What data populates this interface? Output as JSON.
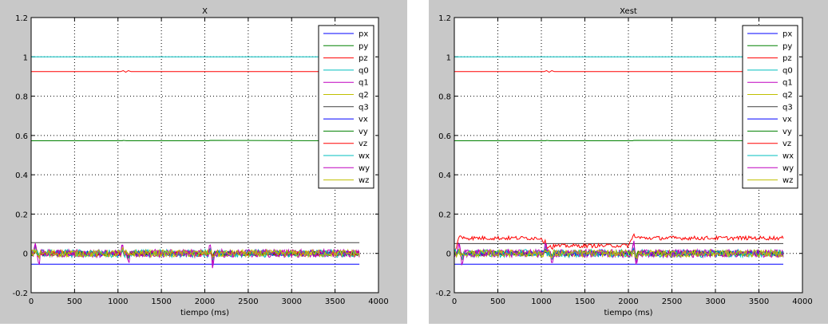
{
  "figure": {
    "background": "#c8c8c8",
    "axes_background": "#ffffff"
  },
  "chart_data": [
    {
      "type": "line",
      "title": "X",
      "xlabel": "tiempo (ms)",
      "ylabel": "",
      "xlim": [
        0,
        4000
      ],
      "ylim": [
        -0.2,
        1.2
      ],
      "xticks": [
        "0",
        "500",
        "1000",
        "1500",
        "2000",
        "2500",
        "3000",
        "3500",
        "4000"
      ],
      "yticks": [
        "-0.2",
        "0",
        "0.2",
        "0.4",
        "0.6",
        "0.8",
        "1",
        "1.2"
      ],
      "grid": true,
      "legend_position": "top-right",
      "series": [
        {
          "name": "px",
          "color": "#0000ff",
          "x": [
            0,
            3780
          ],
          "y": [
            -0.055,
            -0.055
          ]
        },
        {
          "name": "py",
          "color": "#008000",
          "x": [
            0,
            1050,
            1060,
            1100,
            2050,
            2060,
            3780
          ],
          "y": [
            0.573,
            0.573,
            0.575,
            0.573,
            0.573,
            0.575,
            0.573
          ]
        },
        {
          "name": "pz",
          "color": "#ff0000",
          "x": [
            0,
            1030,
            1060,
            1090,
            1120,
            1150,
            3780
          ],
          "y": [
            0.925,
            0.925,
            0.93,
            0.922,
            0.93,
            0.925,
            0.925
          ]
        },
        {
          "name": "q0",
          "color": "#00bfbf",
          "x": [
            0,
            3780
          ],
          "y": [
            1.0,
            1.0
          ]
        },
        {
          "name": "q1",
          "color": "#bf00bf",
          "x": [
            0,
            3780
          ],
          "y": [
            0,
            0
          ]
        },
        {
          "name": "q2",
          "color": "#bfbf00",
          "x": [
            0,
            3780
          ],
          "y": [
            0,
            0
          ]
        },
        {
          "name": "q3",
          "color": "#404040",
          "x": [
            0,
            3780
          ],
          "y": [
            0.055,
            0.055
          ]
        },
        {
          "name": "vx",
          "color": "#0000ff",
          "x": [
            0,
            3780
          ],
          "y": [
            0,
            0
          ]
        },
        {
          "name": "vy",
          "color": "#008000",
          "x": [
            0,
            3780
          ],
          "y": [
            0,
            0
          ]
        },
        {
          "name": "vz",
          "color": "#ff0000",
          "x": [
            0,
            3780
          ],
          "y": [
            0,
            0
          ]
        },
        {
          "name": "wx",
          "color": "#00bfbf",
          "x": [
            0,
            3780
          ],
          "y": [
            0,
            0
          ]
        },
        {
          "name": "wy",
          "color": "#bf00bf",
          "x": [
            0,
            3780
          ],
          "y": [
            0,
            0
          ]
        },
        {
          "name": "wz",
          "color": "#bfbf00",
          "x": [
            0,
            3780
          ],
          "y": [
            0,
            0
          ]
        }
      ]
    },
    {
      "type": "line",
      "title": "Xest",
      "xlabel": "tiempo (ms)",
      "ylabel": "",
      "xlim": [
        0,
        4000
      ],
      "ylim": [
        -0.2,
        1.2
      ],
      "xticks": [
        "0",
        "500",
        "1000",
        "1500",
        "2000",
        "2500",
        "3000",
        "3500",
        "4000"
      ],
      "yticks": [
        "-0.2",
        "0",
        "0.2",
        "0.4",
        "0.6",
        "0.8",
        "1",
        "1.2"
      ],
      "grid": true,
      "legend_position": "top-right",
      "series": [
        {
          "name": "px",
          "color": "#0000ff",
          "x": [
            0,
            3780
          ],
          "y": [
            -0.055,
            -0.055
          ]
        },
        {
          "name": "py",
          "color": "#008000",
          "x": [
            0,
            1050,
            1060,
            1100,
            2050,
            2060,
            3780
          ],
          "y": [
            0.573,
            0.573,
            0.575,
            0.573,
            0.573,
            0.575,
            0.573
          ]
        },
        {
          "name": "pz",
          "color": "#ff0000",
          "x": [
            0,
            1030,
            1060,
            1090,
            1120,
            1150,
            3780
          ],
          "y": [
            0.925,
            0.925,
            0.93,
            0.922,
            0.93,
            0.925,
            0.925
          ]
        },
        {
          "name": "q0",
          "color": "#00bfbf",
          "x": [
            0,
            3780
          ],
          "y": [
            1.0,
            1.0
          ]
        },
        {
          "name": "q1",
          "color": "#bf00bf",
          "x": [
            0,
            3780
          ],
          "y": [
            0,
            0
          ]
        },
        {
          "name": "q2",
          "color": "#bfbf00",
          "x": [
            0,
            3780
          ],
          "y": [
            0,
            0
          ]
        },
        {
          "name": "q3",
          "color": "#404040",
          "x": [
            0,
            3780
          ],
          "y": [
            0.05,
            0.05
          ]
        },
        {
          "name": "vx",
          "color": "#0000ff",
          "x": [
            0,
            3780
          ],
          "y": [
            0,
            0
          ]
        },
        {
          "name": "vy",
          "color": "#008000",
          "x": [
            0,
            3780
          ],
          "y": [
            0,
            0
          ]
        },
        {
          "name": "vz",
          "color": "#ff0000",
          "x": [
            0,
            40,
            80,
            120,
            160,
            1000,
            1030,
            1060,
            1100,
            1140,
            2000,
            2040,
            2080,
            2120,
            2180,
            3780
          ],
          "y": [
            0,
            0.06,
            0.09,
            0.082,
            0.078,
            0.078,
            0.06,
            0.035,
            0.038,
            0.038,
            0.04,
            0.07,
            0.095,
            0.08,
            0.078,
            0.078
          ]
        },
        {
          "name": "wx",
          "color": "#00bfbf",
          "x": [
            0,
            3780
          ],
          "y": [
            0,
            0
          ]
        },
        {
          "name": "wy",
          "color": "#bf00bf",
          "x": [
            0,
            3780
          ],
          "y": [
            0,
            0
          ]
        },
        {
          "name": "wz",
          "color": "#bfbf00",
          "x": [
            0,
            3780
          ],
          "y": [
            0,
            0
          ]
        }
      ]
    }
  ]
}
